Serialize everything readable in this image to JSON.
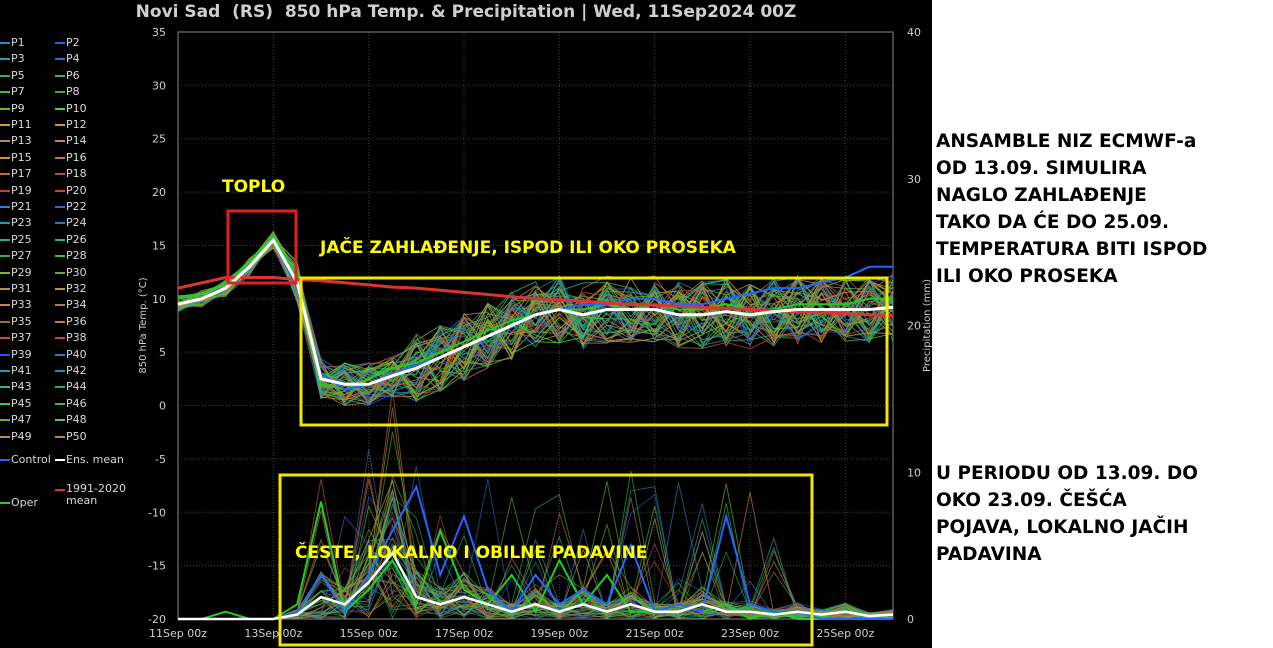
{
  "chart_data": {
    "type": "line",
    "title": "Novi Sad  (RS)  850 hPa Temp. & Precipitation | Wed, 11Sep2024 00Z",
    "ylabel": "850 hPa Temp. (°C)",
    "y2label": "Precipitation (mm)",
    "ylim": [
      -20,
      35
    ],
    "y2lim": [
      0,
      40
    ],
    "yticks": [
      "35",
      "30",
      "25",
      "20",
      "15",
      "10",
      "5",
      "0",
      "-5",
      "-10",
      "-15",
      "-20"
    ],
    "y2ticks": [
      "40",
      "30",
      "20",
      "10",
      "0"
    ],
    "xticks": [
      "11Sep 00z",
      "13Sep 00z",
      "15Sep 00z",
      "17Sep 00z",
      "19Sep 00z",
      "21Sep 00z",
      "23Sep 00z",
      "25Sep 00z"
    ],
    "x_days": [
      11,
      11.5,
      12,
      12.5,
      13,
      13.5,
      14,
      14.5,
      15,
      15.5,
      16,
      16.5,
      17,
      17.5,
      18,
      18.5,
      19,
      19.5,
      20,
      20.5,
      21,
      21.5,
      22,
      22.5,
      23,
      23.5,
      24,
      24.5,
      25,
      25.5,
      26
    ],
    "series": [
      {
        "name": "Ens. mean",
        "color": "#ffffff",
        "values": [
          9.5,
          10,
          11,
          13,
          15.5,
          11.5,
          2.5,
          2,
          2,
          2.8,
          3.5,
          4.5,
          5.5,
          6.5,
          7.5,
          8.5,
          9,
          8.5,
          9,
          9,
          9,
          8.5,
          8.5,
          8.8,
          8.5,
          8.8,
          9,
          9,
          9,
          9,
          9.2
        ]
      },
      {
        "name": "1991-2020 mean",
        "color": "#dd3333",
        "values": [
          11,
          11.5,
          12,
          12,
          12,
          11.8,
          11.7,
          11.5,
          11.3,
          11.1,
          11,
          10.8,
          10.6,
          10.4,
          10.2,
          10,
          9.9,
          9.8,
          9.6,
          9.5,
          9.4,
          9.3,
          9.2,
          9.1,
          9,
          8.9,
          8.8,
          8.7,
          8.6,
          8.5,
          8.4
        ]
      },
      {
        "name": "Control",
        "color": "#2266ff",
        "values": [
          9.5,
          10,
          11,
          13,
          15.5,
          11,
          3,
          1.5,
          2,
          3,
          3.8,
          4.5,
          5.5,
          6.5,
          7.5,
          8.5,
          9,
          9.5,
          9.5,
          10,
          10,
          9.5,
          9.5,
          10,
          10.5,
          11,
          11,
          11.5,
          12,
          13,
          13
        ]
      },
      {
        "name": "Oper",
        "color": "#22cc22",
        "values": [
          10,
          10.5,
          11.5,
          13.5,
          16,
          12,
          2,
          1.5,
          2.5,
          3.5,
          4,
          5,
          6,
          7,
          8,
          8.5,
          9,
          9,
          9.5,
          9,
          9.5,
          9,
          9,
          9.5,
          9,
          9,
          9.5,
          9.5,
          9.5,
          10,
          10
        ]
      }
    ],
    "precip": {
      "Ens. mean": [
        0,
        0,
        0,
        0,
        0,
        0.3,
        1.5,
        1,
        2.5,
        4.5,
        1.5,
        1,
        1.5,
        1,
        0.5,
        1,
        0.5,
        1,
        0.5,
        1,
        0.5,
        0.5,
        1,
        0.5,
        0.5,
        0.3,
        0.5,
        0.3,
        0.5,
        0.2,
        0.3
      ],
      "Control": [
        0,
        0,
        0,
        0,
        0,
        0.5,
        3,
        0.5,
        3,
        6,
        9,
        3,
        7,
        2,
        0.5,
        3,
        1,
        2,
        1,
        5,
        0.5,
        1,
        0.5,
        7,
        1,
        0.5,
        0.5,
        0,
        0,
        0,
        0
      ],
      "Oper": [
        0,
        0,
        0.5,
        0,
        0,
        1,
        8,
        0.5,
        2,
        4,
        1,
        6,
        2,
        1,
        3,
        0.5,
        4,
        1,
        3,
        0.5,
        0.5,
        1,
        0.5,
        1,
        0,
        0.5,
        0,
        0,
        0,
        0,
        0
      ]
    },
    "legend": [
      "P1",
      "P2",
      "P3",
      "P4",
      "P5",
      "P6",
      "P7",
      "P8",
      "P9",
      "P10",
      "P11",
      "P12",
      "P13",
      "P14",
      "P15",
      "P16",
      "P17",
      "P18",
      "P19",
      "P20",
      "P21",
      "P22",
      "P23",
      "P24",
      "P25",
      "P26",
      "P27",
      "P28",
      "P29",
      "P30",
      "P31",
      "P32",
      "P33",
      "P34",
      "P35",
      "P36",
      "P37",
      "P38",
      "P39",
      "P40",
      "P41",
      "P42",
      "P43",
      "P44",
      "P45",
      "P46",
      "P47",
      "P48",
      "P49",
      "P50",
      "Control",
      "Ens. mean",
      "Oper",
      "1991-2020 mean"
    ],
    "legend_colors": [
      "#2a8cc8",
      "#2266dd",
      "#3399aa",
      "#2a6fbf",
      "#22aa88",
      "#2db37a",
      "#33bb55",
      "#44aa33",
      "#66bb22",
      "#55cc33",
      "#bbaa33",
      "#cc9933",
      "#aa9944",
      "#cc8833",
      "#dd8833",
      "#bb7733",
      "#cc6633",
      "#aa5533",
      "#bb4433",
      "#cc4422",
      "#2a7fd5",
      "#3366cc",
      "#2299aa",
      "#2277bb",
      "#22aa99",
      "#22bb77",
      "#33aa66",
      "#44bb44",
      "#77bb22",
      "#66aa33",
      "#aa9933",
      "#bb9933",
      "#cc8844",
      "#bb7744",
      "#aa6633",
      "#cc7733",
      "#bb5533",
      "#cc4433",
      "#2255ee",
      "#3377cc",
      "#2299bb",
      "#2a8aa8",
      "#22bb88",
      "#22aa77",
      "#33cc55",
      "#44bb33",
      "#55bb22",
      "#66cc33",
      "#aa9944",
      "#bb8833",
      "#2266ff",
      "#ffffff",
      "#22cc22",
      "#dd3333"
    ],
    "annotations": [
      "TOPLO",
      "JAČE ZAHLAĐENJE, ISPOD ILI OKO PROSEKA",
      "ČESTE, LOKALNO I OBILNE PADAVINE"
    ]
  },
  "notes": [
    [
      "ANSAMBLE NIZ ECMWF-a",
      "OD 13.09. SIMULIRA",
      "NAGLO ZAHLAĐENJE",
      "TAKO DA ĆE DO 25.09.",
      "TEMPERATURA BITI ISPOD",
      "ILI OKO PROSEKA"
    ],
    [
      "U PERIODU OD 13.09. DO",
      "OKO 23.09. ČEŠĆA",
      "POJAVA, LOKALNO JAČIH",
      "PADAVINA"
    ]
  ]
}
